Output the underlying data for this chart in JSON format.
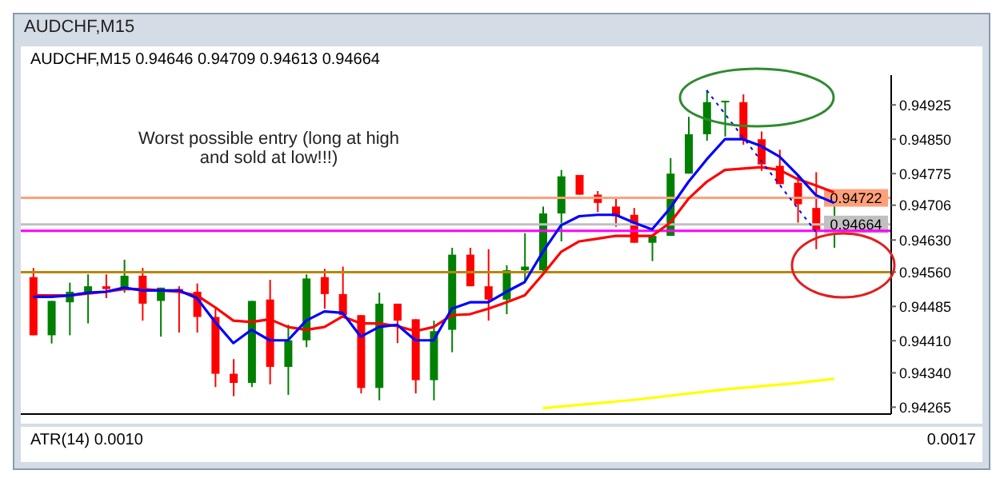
{
  "chart_data": {
    "type": "candlestick",
    "title": "AUDCHF,M15",
    "subtitle": "AUDCHF,M15  0.94646 0.94709 0.94613 0.94664",
    "categories": [
      null,
      null,
      null,
      null,
      null,
      null,
      null,
      null,
      null,
      null,
      null,
      null,
      null,
      null,
      null,
      null,
      null,
      null,
      null,
      null,
      null,
      null,
      null,
      null,
      null,
      null,
      null,
      null,
      null,
      null,
      null,
      null,
      null,
      null,
      null,
      null,
      null,
      null,
      null,
      null,
      null,
      null,
      null,
      null,
      null
    ],
    "ohlc": [
      [
        0.94549,
        0.94569,
        0.94422,
        0.94422
      ],
      [
        0.94422,
        0.94497,
        0.94404,
        0.94497
      ],
      [
        0.94494,
        0.94537,
        0.94422,
        0.94517
      ],
      [
        0.94517,
        0.94555,
        0.94448,
        0.94529
      ],
      [
        0.94529,
        0.94555,
        0.94503,
        0.94523
      ],
      [
        0.94523,
        0.94587,
        0.94515,
        0.94552
      ],
      [
        0.94552,
        0.94569,
        0.94454,
        0.94491
      ],
      [
        0.94497,
        0.94526,
        0.94419,
        0.94526
      ],
      [
        0.94523,
        0.94529,
        0.94428,
        0.94517
      ],
      [
        0.94517,
        0.94535,
        0.94428,
        0.94462
      ],
      [
        0.94462,
        0.94483,
        0.94309,
        0.94338
      ],
      [
        0.94338,
        0.9437,
        0.94289,
        0.94318
      ],
      [
        0.94318,
        0.94497,
        0.94309,
        0.94497
      ],
      [
        0.945,
        0.94543,
        0.94315,
        0.94353
      ],
      [
        0.94353,
        0.94445,
        0.94292,
        0.94411
      ],
      [
        0.94411,
        0.94555,
        0.94396,
        0.94546
      ],
      [
        0.94549,
        0.94567,
        0.9448,
        0.94512
      ],
      [
        0.94512,
        0.94572,
        0.94466,
        0.94466
      ],
      [
        0.94466,
        0.94466,
        0.94295,
        0.94307
      ],
      [
        0.94307,
        0.94515,
        0.9428,
        0.94491
      ],
      [
        0.94491,
        0.94491,
        0.94405,
        0.94454
      ],
      [
        0.94457,
        0.94457,
        0.94295,
        0.94324
      ],
      [
        0.94324,
        0.94454,
        0.9428,
        0.94431
      ],
      [
        0.94434,
        0.94613,
        0.94385,
        0.94598
      ],
      [
        0.94598,
        0.94613,
        0.94529,
        0.94529
      ],
      [
        0.94529,
        0.9461,
        0.94454,
        0.945
      ],
      [
        0.945,
        0.94575,
        0.94468,
        0.94564
      ],
      [
        0.94564,
        0.94645,
        0.94541,
        0.94572
      ],
      [
        0.94564,
        0.94703,
        0.94555,
        0.94688
      ],
      [
        0.94688,
        0.94783,
        0.94627,
        0.94769
      ],
      [
        0.94772,
        0.94772,
        0.94729,
        0.94729
      ],
      [
        0.94729,
        0.94737,
        0.94691,
        0.94711
      ],
      [
        0.94703,
        0.94723,
        0.94659,
        0.94682
      ],
      [
        0.94685,
        0.947,
        0.94624,
        0.94624
      ],
      [
        0.94624,
        0.94642,
        0.94584,
        0.94639
      ],
      [
        0.94639,
        0.94809,
        0.94639,
        0.94775
      ],
      [
        0.94775,
        0.94899,
        0.94775,
        0.94861
      ],
      [
        0.94861,
        0.94957,
        0.94847,
        0.94931
      ],
      [
        0.94931,
        0.94934,
        0.94856,
        0.94934
      ],
      [
        0.94931,
        0.94948,
        0.94838,
        0.9485
      ],
      [
        0.9485,
        0.94867,
        0.94781,
        0.94795
      ],
      [
        0.94792,
        0.94827,
        0.94752,
        0.94752
      ],
      [
        0.94755,
        0.94772,
        0.94668,
        0.94708
      ],
      [
        0.947,
        0.94778,
        0.9461,
        0.94648
      ],
      [
        0.94646,
        0.94709,
        0.94613,
        0.94664
      ]
    ],
    "colors": [
      "#ff0000",
      "#008000",
      "#008000",
      "#008000",
      "#ff0000",
      "#008000",
      "#ff0000",
      "#008000",
      "#ff0000",
      "#ff0000",
      "#ff0000",
      "#ff0000",
      "#008000",
      "#ff0000",
      "#008000",
      "#008000",
      "#ff0000",
      "#ff0000",
      "#ff0000",
      "#008000",
      "#ff0000",
      "#ff0000",
      "#008000",
      "#008000",
      "#ff0000",
      "#ff0000",
      "#008000",
      "#008000",
      "#008000",
      "#008000",
      "#ff0000",
      "#ff0000",
      "#ff0000",
      "#ff0000",
      "#008000",
      "#008000",
      "#008000",
      "#008000",
      "#008000",
      "#ff0000",
      "#ff0000",
      "#ff0000",
      "#ff0000",
      "#ff0000",
      "#008000"
    ],
    "series": [
      {
        "type": "line",
        "color": "#ff0000",
        "values": [
          0.94509,
          0.94509,
          0.94509,
          null,
          0.94517,
          0.94523,
          0.94523,
          0.9452,
          0.94517,
          0.94509,
          0.94483,
          0.94454,
          0.94451,
          0.94457,
          0.9444,
          0.94434,
          0.9444,
          0.94463,
          0.94448,
          0.94448,
          0.94442,
          0.94431,
          0.9444,
          0.94466,
          0.94468,
          0.9448,
          0.94494,
          0.94509,
          0.94555,
          0.94604,
          0.94627,
          0.94633,
          0.94639,
          0.94639,
          0.94639,
          0.94668,
          0.9472,
          0.94757,
          0.94783,
          0.94786,
          0.94789,
          0.94783,
          0.94763,
          0.94749,
          0.94734
        ]
      },
      {
        "type": "line",
        "color": "#0000ff",
        "values": [
          0.94506,
          0.94506,
          0.94509,
          0.94515,
          0.94517,
          0.94526,
          0.9452,
          0.9452,
          0.9452,
          0.94503,
          0.94451,
          0.94405,
          0.94434,
          0.94411,
          0.94411,
          0.94454,
          0.94474,
          0.94471,
          0.94419,
          0.9444,
          0.94445,
          0.94411,
          0.94411,
          0.9448,
          0.94494,
          0.94494,
          0.94517,
          0.94538,
          0.94604,
          0.94662,
          0.94682,
          0.94685,
          0.94685,
          0.94668,
          0.94653,
          0.947,
          0.94757,
          0.94806,
          0.9485,
          0.9485,
          0.94835,
          0.94812,
          0.94772,
          0.94728,
          0.94711
        ]
      },
      {
        "type": "line",
        "color": "#ffff00",
        "values": [
          null,
          null,
          null,
          null,
          null,
          null,
          null,
          null,
          null,
          null,
          null,
          null,
          null,
          null,
          null,
          null,
          null,
          null,
          null,
          null,
          null,
          null,
          null,
          null,
          null,
          null,
          null,
          null,
          0.94263,
          null,
          null,
          null,
          null,
          0.94281,
          null,
          null,
          null,
          null,
          0.94304,
          null,
          null,
          null,
          0.94318,
          null,
          0.94327
        ]
      },
      {
        "type": "line",
        "color": "#0000ff",
        "line_style": "dotted",
        "values": [
          null,
          null,
          null,
          null,
          null,
          null,
          null,
          null,
          null,
          null,
          null,
          null,
          null,
          null,
          null,
          null,
          null,
          null,
          null,
          null,
          null,
          null,
          null,
          null,
          null,
          null,
          null,
          null,
          null,
          null,
          null,
          null,
          null,
          null,
          null,
          null,
          null,
          0.94957,
          null,
          null,
          null,
          null,
          null,
          0.94648,
          null
        ]
      }
    ],
    "ylim": [
      0.9425,
      0.9499
    ],
    "yticks": [
      0.94925,
      {
        "value": 0.9485,
        "label": "0.94850"
      },
      0.94775,
      0.94706,
      {
        "value": 0.9463,
        "label": "0.94630"
      },
      {
        "value": 0.9456,
        "label": "0.94560"
      },
      0.94485,
      {
        "value": 0.9441,
        "label": "0.94410"
      },
      {
        "value": 0.9434,
        "label": "0.94340"
      },
      0.94265
    ],
    "tick_labels": "y",
    "ref_lines": [
      {
        "axis": "y",
        "value": 0.94722,
        "label": "0.94722",
        "color": "#ffa07a"
      },
      {
        "axis": "y",
        "value": 0.94664,
        "label": "0.94664",
        "color": "#c0c0c0"
      },
      {
        "axis": "y",
        "value": 0.9465,
        "color": "#ff00ff"
      },
      {
        "axis": "y",
        "value": 0.9456,
        "color": "#b8860b"
      }
    ],
    "annotations": [
      "Worst possible entry (long at high and sold at low!!!)",
      "ATR(14) 0.0010",
      "0.0017"
    ]
  }
}
